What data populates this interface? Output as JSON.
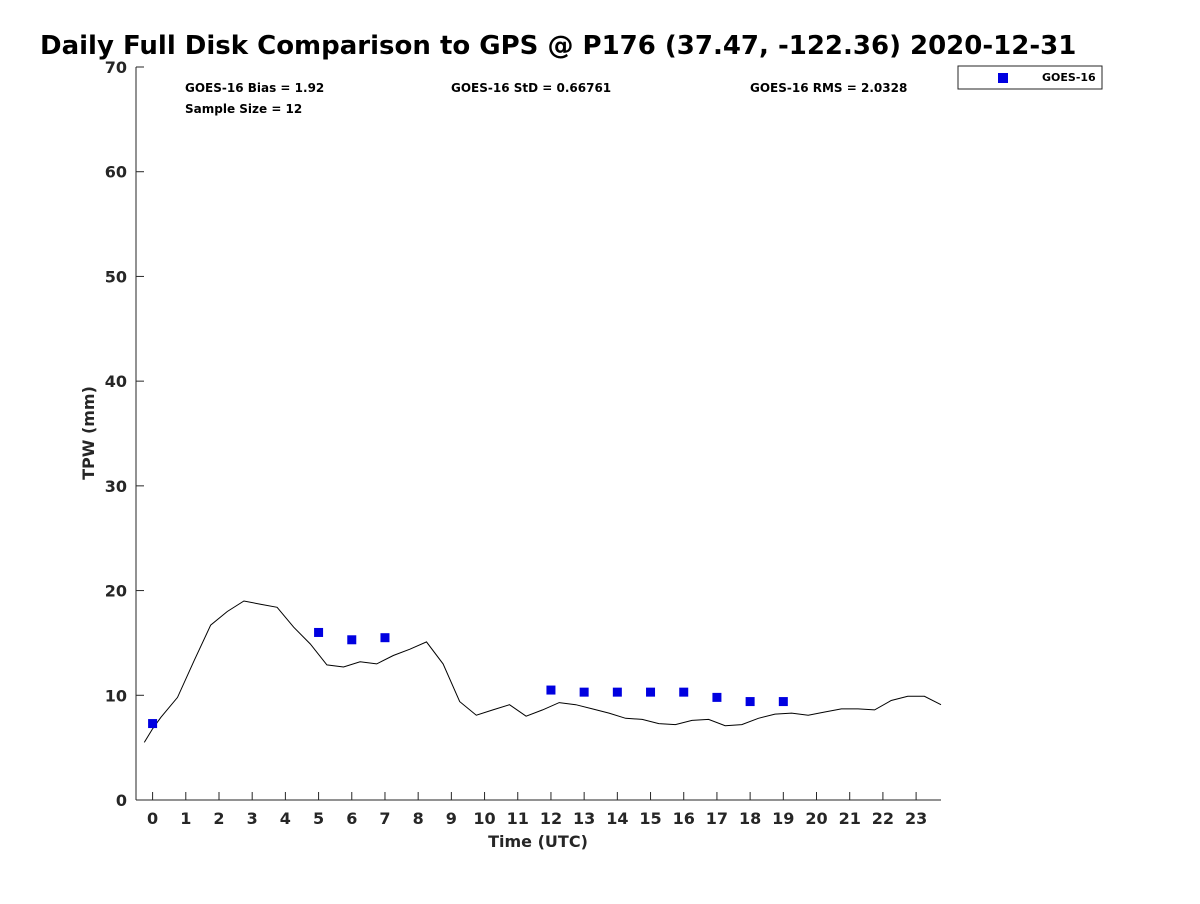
{
  "chart_data": {
    "type": "scatter",
    "title": "Daily Full Disk Comparison to GPS @ P176 (37.47, -122.36) 2020-12-31",
    "xlabel": "Time (UTC)",
    "ylabel": "TPW (mm)",
    "xlim": [
      -0.5,
      23.75
    ],
    "ylim": [
      0,
      70
    ],
    "x_ticks": [
      0,
      1,
      2,
      3,
      4,
      5,
      6,
      7,
      8,
      9,
      10,
      11,
      12,
      13,
      14,
      15,
      16,
      17,
      18,
      19,
      20,
      21,
      22,
      23
    ],
    "y_ticks": [
      0,
      10,
      20,
      30,
      40,
      50,
      60,
      70
    ],
    "grid": false,
    "legend_position": "top-right (outside plot)",
    "stats": {
      "bias": "GOES-16 Bias = 1.92",
      "std": "GOES-16 StD = 0.66761",
      "rms": "GOES-16 RMS = 2.0328",
      "sample": "Sample Size = 12"
    },
    "series": [
      {
        "name": "GOES-16",
        "kind": "scatter",
        "marker": "square",
        "color": "#0000e0",
        "x": [
          0,
          5,
          6,
          7,
          12,
          13,
          14,
          15,
          16,
          17,
          18,
          19
        ],
        "y": [
          7.3,
          16.0,
          15.3,
          15.5,
          10.5,
          10.3,
          10.3,
          10.3,
          10.3,
          9.8,
          9.4,
          9.4
        ]
      },
      {
        "kind": "line",
        "color": "#000000",
        "x": [
          -0.25,
          0,
          0.25,
          0.75,
          1.25,
          1.75,
          2.25,
          2.75,
          3.25,
          3.75,
          4.25,
          4.75,
          5.25,
          5.75,
          6.25,
          6.75,
          7.25,
          7.75,
          8.25,
          8.75,
          9.25,
          9.75,
          10.25,
          10.75,
          11.25,
          11.75,
          12.25,
          12.75,
          13.25,
          13.75,
          14.25,
          14.75,
          15.25,
          15.75,
          16.25,
          16.75,
          17.25,
          17.75,
          18.25,
          18.75,
          19.25,
          19.75,
          20.25,
          20.75,
          21.25,
          21.75,
          22.25,
          22.75,
          23.25,
          23.75
        ],
        "y": [
          5.5,
          6.8,
          7.9,
          9.8,
          13.3,
          16.7,
          18.0,
          19.0,
          18.7,
          18.4,
          16.5,
          14.9,
          12.9,
          12.7,
          13.2,
          13.0,
          13.8,
          14.4,
          15.1,
          13.0,
          9.4,
          8.1,
          8.6,
          9.1,
          8.0,
          8.6,
          9.3,
          9.1,
          8.7,
          8.3,
          7.8,
          7.7,
          7.3,
          7.2,
          7.6,
          7.7,
          7.1,
          7.2,
          7.8,
          8.2,
          8.3,
          8.1,
          8.4,
          8.7,
          8.7,
          8.6,
          9.5,
          9.9,
          9.9,
          9.1
        ]
      }
    ]
  }
}
